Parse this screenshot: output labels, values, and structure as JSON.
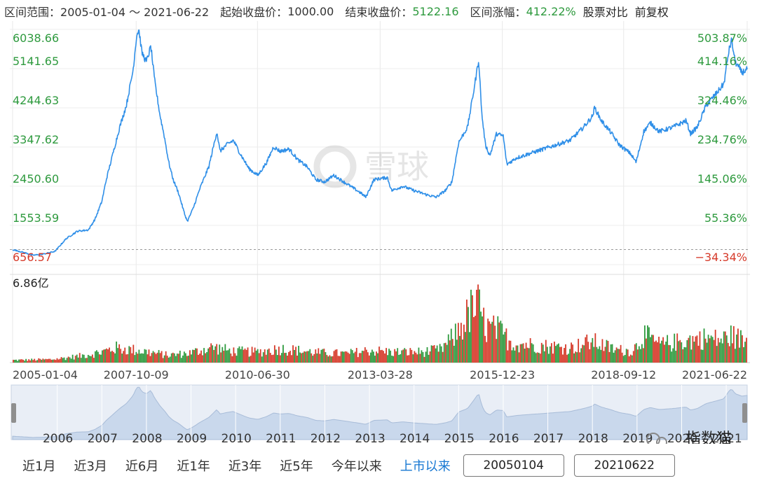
{
  "header": {
    "range_label": "区间范围：",
    "range_value": "2005-01-04 ～ 2021-06-22",
    "start_label": "起始收盘价：",
    "start_value": "1000.00",
    "end_label": "结束收盘价：",
    "end_value": "5122.16",
    "change_label": "区间涨幅：",
    "change_value": "412.22%",
    "compare_label": "股票对比",
    "adjust_label": "前复权"
  },
  "colors": {
    "line": "#2f8fe8",
    "up": "#d63a2a",
    "down": "#2e9a3e",
    "left_axis": "#2e9a3e",
    "neg_axis": "#d63a2a",
    "nav_fill": "#c9d8ec",
    "nav_bg": "#e9eef6",
    "active": "#1677d2"
  },
  "chart_data": {
    "type": "line",
    "x_range": [
      "2005-01-04",
      "2021-06-22"
    ],
    "price_ticks": [
      "6038.66",
      "5141.65",
      "4244.63",
      "3347.62",
      "2450.60",
      "1553.59",
      "656.57"
    ],
    "price_range": [
      656.57,
      6038.66
    ],
    "pct_ticks": [
      "503.87%",
      "414.16%",
      "324.46%",
      "234.76%",
      "145.06%",
      "55.36%",
      "−34.34%"
    ],
    "baseline": 1000,
    "volume_label": "6.86亿",
    "volume_max": 6.86,
    "x_tick_labels": [
      "2005-01-04",
      "2007-10-09",
      "2010-06-30",
      "2013-03-28",
      "2015-12-23",
      "2018-09-12",
      "2021-06-22"
    ],
    "series": [
      {
        "values": [
          [
            2005.0,
            1000
          ],
          [
            2005.3,
            920
          ],
          [
            2005.45,
            870
          ],
          [
            2005.7,
            900
          ],
          [
            2005.95,
            960
          ],
          [
            2006.2,
            1250
          ],
          [
            2006.45,
            1420
          ],
          [
            2006.7,
            1450
          ],
          [
            2006.85,
            1700
          ],
          [
            2007.0,
            2100
          ],
          [
            2007.1,
            2600
          ],
          [
            2007.3,
            3400
          ],
          [
            2007.4,
            3800
          ],
          [
            2007.55,
            4300
          ],
          [
            2007.7,
            5100
          ],
          [
            2007.78,
            5900
          ],
          [
            2007.83,
            6040
          ],
          [
            2007.9,
            5500
          ],
          [
            2008.0,
            5300
          ],
          [
            2008.1,
            5650
          ],
          [
            2008.18,
            4900
          ],
          [
            2008.3,
            4100
          ],
          [
            2008.4,
            3600
          ],
          [
            2008.5,
            3000
          ],
          [
            2008.6,
            2600
          ],
          [
            2008.72,
            2300
          ],
          [
            2008.86,
            1800
          ],
          [
            2008.92,
            1650
          ],
          [
            2009.05,
            1950
          ],
          [
            2009.2,
            2400
          ],
          [
            2009.4,
            2900
          ],
          [
            2009.58,
            3700
          ],
          [
            2009.65,
            3250
          ],
          [
            2009.8,
            3400
          ],
          [
            2009.95,
            3500
          ],
          [
            2010.1,
            3200
          ],
          [
            2010.3,
            2850
          ],
          [
            2010.5,
            2700
          ],
          [
            2010.7,
            3000
          ],
          [
            2010.85,
            3350
          ],
          [
            2011.0,
            3250
          ],
          [
            2011.2,
            3300
          ],
          [
            2011.4,
            3050
          ],
          [
            2011.6,
            2900
          ],
          [
            2011.8,
            2600
          ],
          [
            2012.0,
            2550
          ],
          [
            2012.2,
            2700
          ],
          [
            2012.5,
            2500
          ],
          [
            2012.8,
            2300
          ],
          [
            2012.92,
            2200
          ],
          [
            2013.1,
            2600
          ],
          [
            2013.4,
            2650
          ],
          [
            2013.5,
            2350
          ],
          [
            2013.75,
            2450
          ],
          [
            2014.0,
            2350
          ],
          [
            2014.3,
            2250
          ],
          [
            2014.5,
            2200
          ],
          [
            2014.7,
            2350
          ],
          [
            2014.85,
            2550
          ],
          [
            2015.0,
            3450
          ],
          [
            2015.2,
            3800
          ],
          [
            2015.35,
            4700
          ],
          [
            2015.45,
            5350
          ],
          [
            2015.52,
            4100
          ],
          [
            2015.6,
            3400
          ],
          [
            2015.7,
            3150
          ],
          [
            2015.85,
            3650
          ],
          [
            2016.0,
            3600
          ],
          [
            2016.08,
            2950
          ],
          [
            2016.3,
            3100
          ],
          [
            2016.6,
            3200
          ],
          [
            2016.9,
            3300
          ],
          [
            2017.2,
            3400
          ],
          [
            2017.5,
            3500
          ],
          [
            2017.8,
            3800
          ],
          [
            2018.0,
            4050
          ],
          [
            2018.05,
            4250
          ],
          [
            2018.2,
            3950
          ],
          [
            2018.4,
            3700
          ],
          [
            2018.6,
            3400
          ],
          [
            2018.85,
            3200
          ],
          [
            2018.98,
            3000
          ],
          [
            2019.15,
            3700
          ],
          [
            2019.3,
            3900
          ],
          [
            2019.5,
            3700
          ],
          [
            2019.8,
            3800
          ],
          [
            2020.1,
            3950
          ],
          [
            2020.2,
            3650
          ],
          [
            2020.35,
            3800
          ],
          [
            2020.55,
            4300
          ],
          [
            2020.8,
            4600
          ],
          [
            2020.95,
            4800
          ],
          [
            2021.05,
            5500
          ],
          [
            2021.12,
            5800
          ],
          [
            2021.2,
            5300
          ],
          [
            2021.35,
            5050
          ],
          [
            2021.47,
            5122.16
          ]
        ]
      }
    ],
    "volume_envelope": [
      [
        2005.0,
        0.3
      ],
      [
        2005.9,
        0.4
      ],
      [
        2006.5,
        0.8
      ],
      [
        2007.0,
        1.3
      ],
      [
        2007.3,
        1.8
      ],
      [
        2007.8,
        1.5
      ],
      [
        2008.5,
        0.9
      ],
      [
        2009.0,
        1.2
      ],
      [
        2009.5,
        1.9
      ],
      [
        2009.9,
        1.4
      ],
      [
        2010.5,
        1.3
      ],
      [
        2011.0,
        1.7
      ],
      [
        2011.9,
        1.2
      ],
      [
        2012.5,
        1.1
      ],
      [
        2013.0,
        1.5
      ],
      [
        2013.5,
        1.3
      ],
      [
        2014.2,
        1.3
      ],
      [
        2014.6,
        1.6
      ],
      [
        2014.9,
        3.2
      ],
      [
        2015.1,
        4.8
      ],
      [
        2015.3,
        6.5
      ],
      [
        2015.45,
        6.86
      ],
      [
        2015.6,
        4.3
      ],
      [
        2015.9,
        3.9
      ],
      [
        2016.2,
        2.4
      ],
      [
        2016.6,
        2.2
      ],
      [
        2017.0,
        2.0
      ],
      [
        2017.5,
        1.8
      ],
      [
        2018.0,
        2.6
      ],
      [
        2018.5,
        1.6
      ],
      [
        2018.9,
        1.4
      ],
      [
        2019.15,
        3.4
      ],
      [
        2019.5,
        2.2
      ],
      [
        2020.0,
        2.6
      ],
      [
        2020.5,
        3.0
      ],
      [
        2020.9,
        2.8
      ],
      [
        2021.1,
        3.3
      ],
      [
        2021.47,
        2.6
      ]
    ]
  },
  "navigator": {
    "year_labels": [
      "2006",
      "2007",
      "2008",
      "2009",
      "2010",
      "2011",
      "2012",
      "2013",
      "2014",
      "2015",
      "2016",
      "2017",
      "2018",
      "2019",
      "2020",
      "2021"
    ]
  },
  "watermark": {
    "brand": "雪球",
    "account": "指数猫"
  },
  "controls": {
    "ranges": [
      "近1月",
      "近3月",
      "近6月",
      "近1年",
      "近3年",
      "近5年",
      "今年以来",
      "上市以来"
    ],
    "active_range": "上市以来",
    "start_date": "20050104",
    "end_date": "20210622"
  }
}
